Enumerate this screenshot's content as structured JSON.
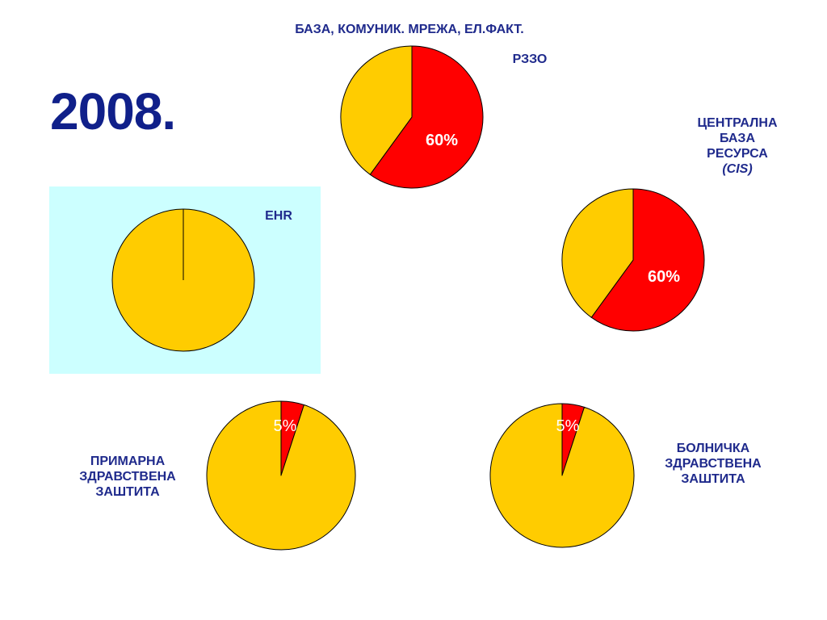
{
  "slide": {
    "year": "2008.",
    "colors": {
      "text": "#1f2a8c",
      "year": "#10208a",
      "red": "#ff0000",
      "yellow": "#ffcc00",
      "ehr_bg": "#ccffff",
      "white_label": "#ffffff"
    }
  },
  "chart_data": [
    {
      "type": "pie",
      "title": "РЗЗО",
      "caption": "БАЗА, КОМУНИК. МРЕЖА, ЕЛ.ФАКТ.",
      "slices": [
        {
          "label": "60%",
          "value": 60,
          "color": "#ff0000"
        },
        {
          "label": "",
          "value": 40,
          "color": "#ffcc00"
        }
      ]
    },
    {
      "type": "pie",
      "title": "ЦЕНТРАЛНА БАЗА РЕСУРСА",
      "title_lines": [
        "ЦЕНТРАЛНА",
        "БАЗА",
        "РЕСУРСА"
      ],
      "subtitle": "(CIS)",
      "slices": [
        {
          "label": "60%",
          "value": 60,
          "color": "#ff0000"
        },
        {
          "label": "",
          "value": 40,
          "color": "#ffcc00"
        }
      ]
    },
    {
      "type": "pie",
      "title": "EHR",
      "slices": [
        {
          "label": "",
          "value": 0,
          "color": "#ff0000"
        },
        {
          "label": "",
          "value": 100,
          "color": "#ffcc00"
        }
      ]
    },
    {
      "type": "pie",
      "title": "ПРИМАРНА ЗДРАВСТВЕНА ЗАШТИТА",
      "title_lines": [
        "ПРИМАРНА",
        "ЗДРАВСТВЕНА",
        "ЗАШТИТА"
      ],
      "slices": [
        {
          "label": "5%",
          "value": 5,
          "color": "#ff0000"
        },
        {
          "label": "",
          "value": 95,
          "color": "#ffcc00"
        }
      ]
    },
    {
      "type": "pie",
      "title": "БОЛНИЧКА ЗДРАВСТВЕНА ЗАШТИТА",
      "title_lines": [
        "БОЛНИЧКА",
        "ЗДРАВСТВЕНА",
        "ЗАШТИТА"
      ],
      "slices": [
        {
          "label": "5%",
          "value": 5,
          "color": "#ff0000"
        },
        {
          "label": "",
          "value": 95,
          "color": "#ffcc00"
        }
      ]
    }
  ]
}
